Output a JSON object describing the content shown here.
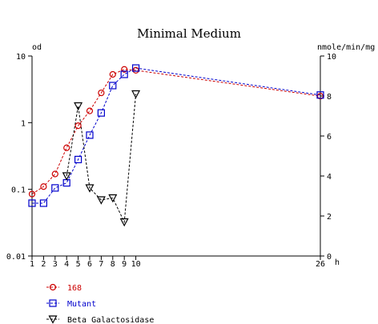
{
  "chart_data": {
    "type": "line",
    "title": "Minimal Medium",
    "xlabel": "h",
    "ylabel_left": "od",
    "ylabel_right": "nmole/min/mg",
    "x_ticks": [
      1,
      2,
      3,
      4,
      5,
      6,
      7,
      8,
      9,
      10,
      26
    ],
    "y_left_scale": "log",
    "y_left_ticks": [
      "0.01",
      "0.1",
      "1",
      "10"
    ],
    "y_left_range": [
      0.01,
      10
    ],
    "y_right_ticks": [
      "0",
      "2",
      "4",
      "6",
      "8",
      "10"
    ],
    "y_right_range": [
      0,
      10
    ],
    "grid": false,
    "legend_position": "bottom-left",
    "series": [
      {
        "name": "168",
        "axis": "left",
        "color": "#cc0000",
        "marker": "circle",
        "x": [
          1,
          2,
          3,
          4,
          5,
          6,
          7,
          8,
          9,
          10,
          26
        ],
        "y": [
          0.085,
          0.11,
          0.17,
          0.42,
          0.9,
          1.5,
          2.8,
          5.3,
          6.3,
          6.1,
          2.5
        ]
      },
      {
        "name": "Mutant",
        "axis": "left",
        "color": "#0000cc",
        "marker": "square",
        "x": [
          1,
          2,
          3,
          4,
          5,
          6,
          7,
          8,
          9,
          10,
          26
        ],
        "y": [
          0.062,
          0.062,
          0.105,
          0.125,
          0.28,
          0.65,
          1.4,
          3.6,
          5.3,
          6.6,
          2.6
        ]
      },
      {
        "name": "Beta Galactosidase",
        "axis": "right",
        "color": "#000000",
        "marker": "triangle-down",
        "x": [
          4,
          5,
          6,
          7,
          8,
          9,
          10
        ],
        "y": [
          4.0,
          7.5,
          3.4,
          2.8,
          2.9,
          1.7,
          8.1
        ]
      }
    ]
  }
}
